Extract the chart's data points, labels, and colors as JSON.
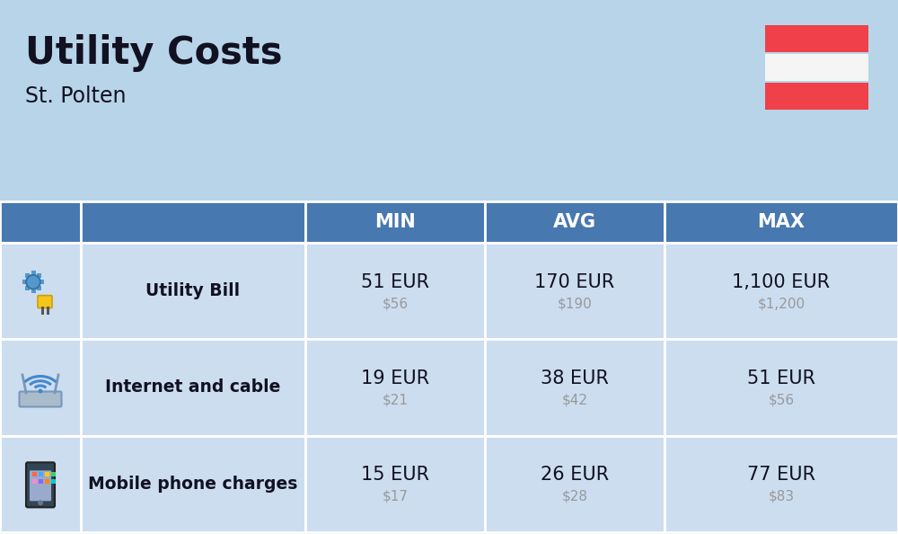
{
  "title": "Utility Costs",
  "subtitle": "St. Polten",
  "background_color": "#b8d4e8",
  "header_color": "#4878b0",
  "header_text_color": "#ffffff",
  "row_color": "#ccddf0",
  "separator_color": "#ffffff",
  "row_labels": [
    "Utility Bill",
    "Internet and cable",
    "Mobile phone charges"
  ],
  "col_headers": [
    "MIN",
    "AVG",
    "MAX"
  ],
  "eur_values": [
    [
      "51 EUR",
      "170 EUR",
      "1,100 EUR"
    ],
    [
      "19 EUR",
      "38 EUR",
      "51 EUR"
    ],
    [
      "15 EUR",
      "26 EUR",
      "77 EUR"
    ]
  ],
  "usd_values": [
    [
      "$56",
      "$190",
      "$1,200"
    ],
    [
      "$21",
      "$42",
      "$56"
    ],
    [
      "$17",
      "$28",
      "$83"
    ]
  ],
  "flag_red": "#f0404a",
  "flag_white": "#f5f5f5",
  "title_color": "#111122",
  "label_color": "#111122",
  "value_color": "#111122",
  "usd_color": "#999999",
  "fig_width": 10.0,
  "fig_height": 5.94,
  "dpi": 100
}
